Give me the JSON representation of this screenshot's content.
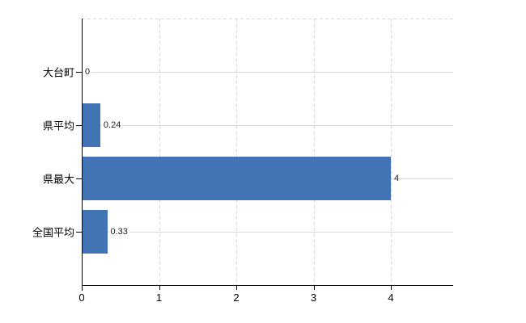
{
  "chart_data": {
    "type": "bar",
    "orientation": "horizontal",
    "title": "",
    "xlabel": "",
    "ylabel": "",
    "categories": [
      "大台町",
      "県平均",
      "県最大",
      "全国平均"
    ],
    "values": [
      0,
      0.24,
      4,
      0.33
    ],
    "value_labels": [
      "0",
      "0.24",
      "4",
      "0.33"
    ],
    "x_tick_labels": [
      "0",
      "1",
      "2",
      "3",
      "4"
    ],
    "x_ticks": [
      0,
      1,
      2,
      3,
      4
    ],
    "xlim": [
      0,
      4.8
    ],
    "grid": {
      "vertical_gridlines_at": [
        1,
        2,
        3,
        4
      ],
      "vertical_style": "dashed",
      "horizontal_rowlines": true,
      "top_border": "dashed"
    },
    "legend": "none",
    "colors": {
      "bar": "#4273b4",
      "axis": "#000000",
      "vertical_gridline": "#d9d9d9",
      "row_gridline": "#d3dad3",
      "value_label_text": "#1a1a1a",
      "tick_label_text": "#000000",
      "background": "#ffffff"
    }
  }
}
